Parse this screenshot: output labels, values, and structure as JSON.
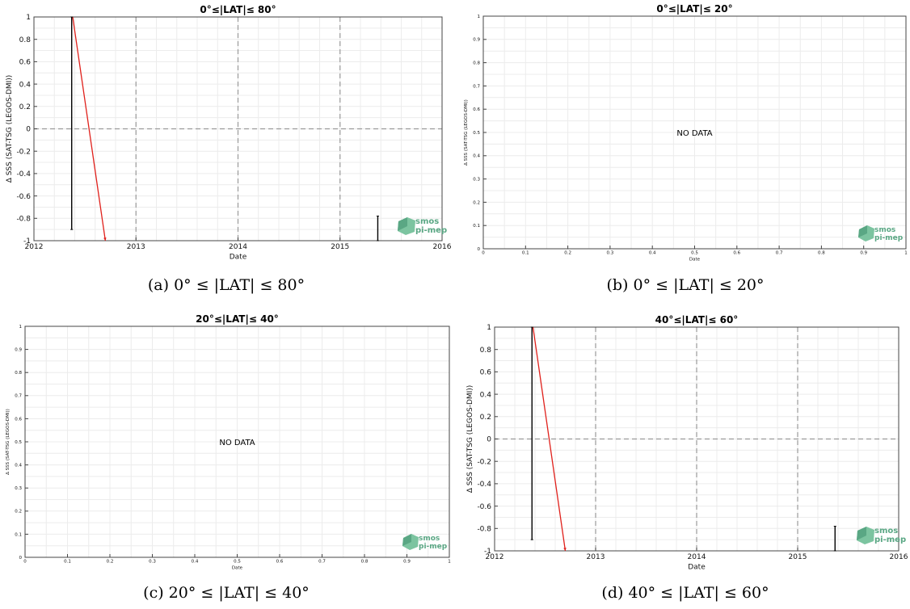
{
  "logo": {
    "line1": "smos",
    "line2": "pi-mep"
  },
  "chart_data": [
    {
      "id": "a",
      "type": "line",
      "title": "0°≤|LAT|≤ 80°",
      "xlabel": "Date",
      "ylabel": "Δ SSS (SAT-TSG (LEGOS-DMI))",
      "xlim": [
        2012,
        2016
      ],
      "ylim": [
        -1,
        1
      ],
      "xticks": [
        2012,
        2013,
        2014,
        2015,
        2016
      ],
      "yticks": [
        -1,
        -0.8,
        -0.6,
        -0.4,
        -0.2,
        0,
        0.2,
        0.4,
        0.6,
        0.8,
        1
      ],
      "ytick_labels": [
        "-1",
        "-0.8",
        "-0.6",
        "-0.4",
        "-0.2",
        "0",
        "0.2",
        "0.4",
        "0.6",
        "0.8",
        "1"
      ],
      "grid": true,
      "no_data": false,
      "series": [
        {
          "kind": "trend",
          "color": "#e0201b",
          "x": [
            2012.38,
            2012.7
          ],
          "y": [
            1.0,
            -1.0
          ]
        },
        {
          "kind": "errorbar",
          "color": "#000000",
          "x": [
            2012.37,
            2012.37
          ],
          "y": [
            1.0,
            -0.9
          ]
        },
        {
          "kind": "errorbar",
          "color": "#000000",
          "x": [
            2015.37,
            2015.37
          ],
          "y": [
            -0.78,
            -1.0
          ]
        }
      ],
      "caption": "(a) 0° ≤ |LAT| ≤ 80°"
    },
    {
      "id": "b",
      "type": "line",
      "title": "0°≤|LAT|≤ 20°",
      "xlabel": "Date",
      "ylabel": "Δ SSS (SAT-TSG (LEGOS-DMI))",
      "xlim": [
        0,
        1
      ],
      "ylim": [
        0,
        1
      ],
      "xticks": [
        0,
        0.1,
        0.2,
        0.3,
        0.4,
        0.5,
        0.6,
        0.7,
        0.8,
        0.9,
        1
      ],
      "yticks": [
        0,
        0.1,
        0.2,
        0.3,
        0.4,
        0.5,
        0.6,
        0.7,
        0.8,
        0.9,
        1
      ],
      "grid": true,
      "no_data": true,
      "no_data_text": "NO DATA",
      "series": [],
      "caption": "(b) 0° ≤ |LAT| ≤ 20°"
    },
    {
      "id": "c",
      "type": "line",
      "title": "20°≤|LAT|≤ 40°",
      "xlabel": "Date",
      "ylabel": "Δ SSS (SAT-TSG (LEGOS-DMI))",
      "xlim": [
        0,
        1
      ],
      "ylim": [
        0,
        1
      ],
      "xticks": [
        0,
        0.1,
        0.2,
        0.3,
        0.4,
        0.5,
        0.6,
        0.7,
        0.8,
        0.9,
        1
      ],
      "yticks": [
        0,
        0.1,
        0.2,
        0.3,
        0.4,
        0.5,
        0.6,
        0.7,
        0.8,
        0.9,
        1
      ],
      "grid": true,
      "no_data": true,
      "no_data_text": "NO DATA",
      "series": [],
      "caption": "(c) 20° ≤ |LAT| ≤ 40°"
    },
    {
      "id": "d",
      "type": "line",
      "title": "40°≤|LAT|≤ 60°",
      "xlabel": "Date",
      "ylabel": "Δ SSS (SAT-TSG (LEGOS-DMI))",
      "xlim": [
        2012,
        2016
      ],
      "ylim": [
        -1,
        1
      ],
      "xticks": [
        2012,
        2013,
        2014,
        2015,
        2016
      ],
      "yticks": [
        -1,
        -0.8,
        -0.6,
        -0.4,
        -0.2,
        0,
        0.2,
        0.4,
        0.6,
        0.8,
        1
      ],
      "ytick_labels": [
        "-1",
        "-0.8",
        "-0.6",
        "-0.4",
        "-0.2",
        "0",
        "0.2",
        "0.4",
        "0.6",
        "0.8",
        "1"
      ],
      "grid": true,
      "no_data": false,
      "series": [
        {
          "kind": "trend",
          "color": "#e0201b",
          "x": [
            2012.38,
            2012.7
          ],
          "y": [
            1.0,
            -1.0
          ]
        },
        {
          "kind": "errorbar",
          "color": "#000000",
          "x": [
            2012.37,
            2012.37
          ],
          "y": [
            1.0,
            -0.9
          ]
        },
        {
          "kind": "errorbar",
          "color": "#000000",
          "x": [
            2015.37,
            2015.37
          ],
          "y": [
            -0.78,
            -1.0
          ]
        }
      ],
      "caption": "(d) 40° ≤ |LAT| ≤ 60°"
    }
  ]
}
